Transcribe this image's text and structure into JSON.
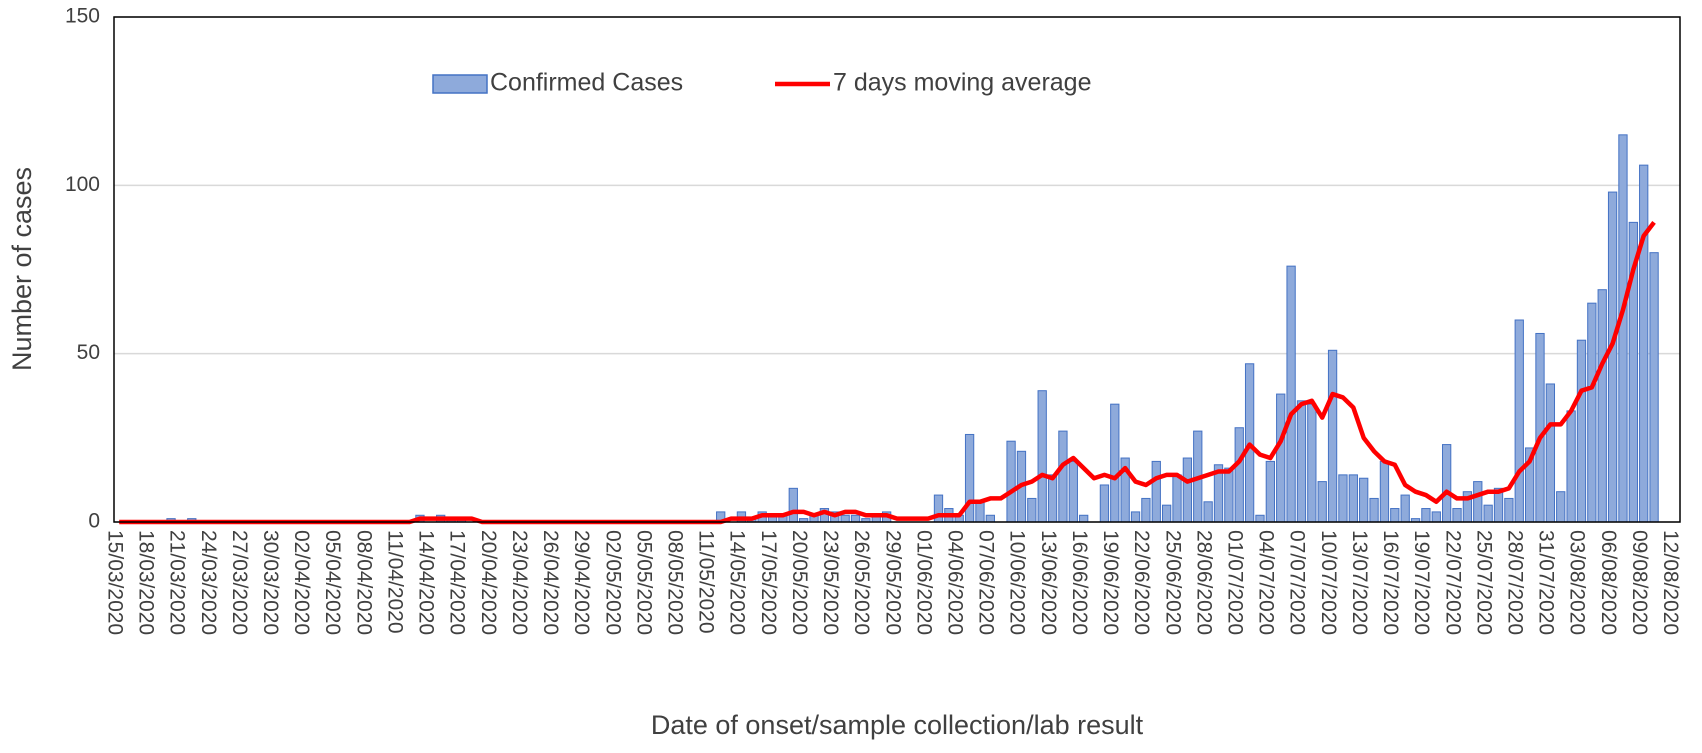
{
  "chart_data": {
    "type": "bar",
    "x_label": "Date of onset/sample collection/lab result",
    "y_label": "Number of cases",
    "categories": [
      "15/03/2020",
      null,
      null,
      "18/03/2020",
      null,
      null,
      "21/03/2020",
      null,
      null,
      "24/03/2020",
      null,
      null,
      "27/03/2020",
      null,
      null,
      "30/03/2020",
      null,
      null,
      "02/04/2020",
      null,
      null,
      "05/04/2020",
      null,
      null,
      "08/04/2020",
      null,
      null,
      "11/04/2020",
      null,
      null,
      "14/04/2020",
      null,
      null,
      "17/04/2020",
      null,
      null,
      "20/04/2020",
      null,
      null,
      "23/04/2020",
      null,
      null,
      "26/04/2020",
      null,
      null,
      "29/04/2020",
      null,
      null,
      "02/05/2020",
      null,
      null,
      "05/05/2020",
      null,
      null,
      "08/05/2020",
      null,
      null,
      "11/05/2020",
      null,
      null,
      "14/05/2020",
      null,
      null,
      "17/05/2020",
      null,
      null,
      "20/05/2020",
      null,
      null,
      "23/05/2020",
      null,
      null,
      "26/05/2020",
      null,
      null,
      "29/05/2020",
      null,
      null,
      "01/06/2020",
      null,
      null,
      "04/06/2020",
      null,
      null,
      "07/06/2020",
      null,
      null,
      "10/06/2020",
      null,
      null,
      "13/06/2020",
      null,
      null,
      "16/06/2020",
      null,
      null,
      "19/06/2020",
      null,
      null,
      "22/06/2020",
      null,
      null,
      "25/06/2020",
      null,
      null,
      "28/06/2020",
      null,
      null,
      "01/07/2020",
      null,
      null,
      "04/07/2020",
      null,
      null,
      "07/07/2020",
      null,
      null,
      "10/07/2020",
      null,
      null,
      "13/07/2020",
      null,
      null,
      "16/07/2020",
      null,
      null,
      "19/07/2020",
      null,
      null,
      "22/07/2020",
      null,
      null,
      "25/07/2020",
      null,
      null,
      "28/07/2020",
      null,
      null,
      "31/07/2020",
      null,
      null,
      "03/08/2020",
      null,
      null,
      "06/08/2020",
      null,
      null,
      "09/08/2020",
      null,
      null,
      "12/08/2020"
    ],
    "series": [
      {
        "name": "Confirmed Cases",
        "type": "bar",
        "color": "#8eaadb",
        "edge_color": "#4472c4",
        "values": [
          0,
          0,
          0,
          0,
          0,
          1,
          0,
          1,
          0,
          0,
          0,
          0,
          0,
          0,
          0,
          0,
          0,
          0,
          0,
          0,
          0,
          0,
          0,
          0,
          0,
          0,
          0,
          0,
          0,
          2,
          0,
          2,
          1,
          1,
          0,
          0,
          0,
          0,
          0,
          0,
          0,
          0,
          0,
          0,
          0,
          0,
          0,
          0,
          0,
          0,
          0,
          0,
          0,
          0,
          0,
          0,
          0,
          0,
          3,
          0,
          3,
          1,
          3,
          2,
          2,
          10,
          1,
          2,
          4,
          3,
          2,
          2,
          1,
          2,
          3,
          0,
          0,
          0,
          0,
          8,
          4,
          2,
          26,
          6,
          2,
          0,
          24,
          21,
          7,
          39,
          14,
          27,
          18,
          2,
          0,
          11,
          35,
          19,
          3,
          7,
          18,
          5,
          14,
          19,
          27,
          6,
          17,
          16,
          28,
          47,
          2,
          18,
          38,
          76,
          36,
          35,
          12,
          51,
          14,
          14,
          13,
          7,
          18,
          4,
          8,
          1,
          4,
          3,
          23,
          4,
          9,
          12,
          5,
          10,
          7,
          60,
          22,
          56,
          41,
          9,
          33,
          54,
          65,
          69,
          98,
          115,
          89,
          106,
          80,
          null,
          null
        ]
      },
      {
        "name": "7 days moving average",
        "type": "line",
        "color": "#ff0000",
        "values": [
          0,
          0,
          0,
          0,
          0,
          0,
          0,
          0,
          0,
          0,
          0,
          0,
          0,
          0,
          0,
          0,
          0,
          0,
          0,
          0,
          0,
          0,
          0,
          0,
          0,
          0,
          0,
          0,
          0,
          1,
          1,
          1,
          1,
          1,
          1,
          0,
          0,
          0,
          0,
          0,
          0,
          0,
          0,
          0,
          0,
          0,
          0,
          0,
          0,
          0,
          0,
          0,
          0,
          0,
          0,
          0,
          0,
          0,
          0,
          1,
          1,
          1,
          2,
          2,
          2,
          3,
          3,
          2,
          3,
          2,
          3,
          3,
          2,
          2,
          2,
          1,
          1,
          1,
          1,
          2,
          2,
          2,
          6,
          6,
          7,
          7,
          9,
          11,
          12,
          14,
          13,
          17,
          19,
          16,
          13,
          14,
          13,
          16,
          12,
          11,
          13,
          14,
          14,
          12,
          13,
          14,
          15,
          15,
          18,
          23,
          20,
          19,
          24,
          32,
          35,
          36,
          31,
          38,
          37,
          34,
          25,
          21,
          18,
          17,
          11,
          9,
          8,
          6,
          9,
          7,
          7,
          8,
          9,
          9,
          10,
          15,
          18,
          25,
          29,
          29,
          33,
          39,
          40,
          47,
          53,
          63,
          75,
          85,
          89,
          null,
          null
        ]
      }
    ],
    "ylim": [
      0,
      150
    ],
    "yticks": [
      0,
      50,
      100,
      150
    ],
    "grid": true,
    "legend": "top"
  }
}
